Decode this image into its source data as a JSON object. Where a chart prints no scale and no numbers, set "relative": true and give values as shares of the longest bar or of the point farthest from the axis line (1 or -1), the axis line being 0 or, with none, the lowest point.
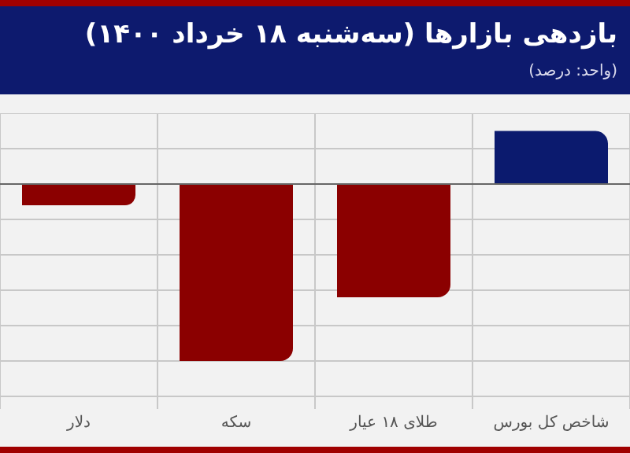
{
  "chart_data": {
    "type": "bar",
    "title": "بازدهی بازارها (سه‌شنبه ۱۸ خرداد ۱۴۰۰)",
    "subtitle": "(واحد: درصد)",
    "categories": [
      "دلار",
      "سکه",
      "طلای ۱۸ عیار",
      "شاخص کل بورس"
    ],
    "values": [
      -0.12,
      -1,
      -0.64,
      0.3
    ],
    "colors": [
      "#8b0000",
      "#8b0000",
      "#8b0000",
      "#0b1a6e"
    ],
    "relative": true,
    "grid": true
  }
}
